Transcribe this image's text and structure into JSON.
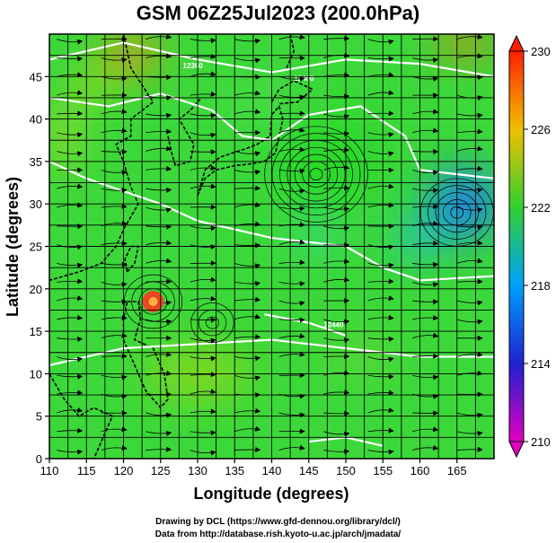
{
  "title": "GSM 06Z25Jul2023 (200.0hPa)",
  "credits": {
    "line1": "Drawing by DCL (https://www.gfd-dennou.org/library/dcl/)",
    "line2": "Data from http://database.rish.kyoto-u.ac.jp/arch/jmadata/"
  },
  "chart_data": {
    "type": "heatmap",
    "title": "GSM 06Z25Jul2023 (200.0hPa)",
    "xlabel": "Longitude (degrees)",
    "ylabel": "Latitude  (degrees)",
    "xlim": [
      110,
      170
    ],
    "ylim": [
      0,
      50
    ],
    "x_ticks": [
      110,
      115,
      120,
      125,
      130,
      135,
      140,
      145,
      150,
      155,
      160,
      165
    ],
    "y_ticks": [
      0,
      5,
      10,
      15,
      20,
      25,
      30,
      35,
      40,
      45
    ],
    "grid": true,
    "colorbar": {
      "min": 210,
      "max": 230,
      "ticks": [
        210,
        214,
        218,
        222,
        226,
        230
      ],
      "colors": [
        "#e000c0",
        "#2020d0",
        "#00a0ff",
        "#30d030",
        "#f0c000",
        "#ff2000"
      ]
    },
    "contour_labels": [
      "12400",
      "12360",
      "12440"
    ],
    "features": [
      {
        "name": "tropical-cyclone",
        "lon": 124,
        "lat": 18.5,
        "value": 229
      },
      {
        "name": "upper-high",
        "lon": 146,
        "lat": 34,
        "value": 222
      },
      {
        "name": "cold-low",
        "lon": 166,
        "lat": 29,
        "value": 217
      },
      {
        "name": "vortex",
        "lon": 132,
        "lat": 16,
        "value": 223
      }
    ]
  }
}
